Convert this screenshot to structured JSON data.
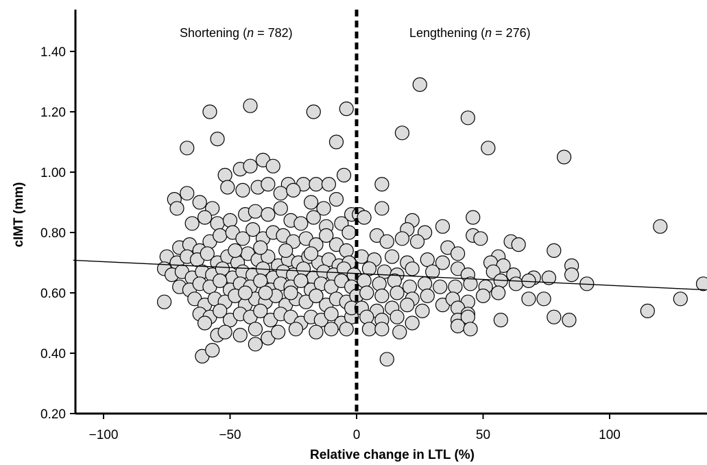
{
  "chart_data": {
    "type": "scatter",
    "title": "",
    "xlabel": "Relative change in LTL (%)",
    "ylabel": "cIMT (mm)",
    "xlim": [
      -112,
      138
    ],
    "ylim": [
      0.2,
      1.55
    ],
    "x_ticks": [
      -100,
      -50,
      0,
      50,
      100
    ],
    "x_tick_labels": [
      "−100",
      "−50",
      "0",
      "50",
      "100"
    ],
    "y_ticks": [
      0.2,
      0.4,
      0.6,
      0.8,
      1.0,
      1.2,
      1.4
    ],
    "y_tick_labels": [
      "0.20",
      "0.40",
      "0.60",
      "0.80",
      "1.00",
      "1.20",
      "1.40"
    ],
    "grid": false,
    "annotations": {
      "left_prefix": "Shortening (",
      "left_n": "n",
      "left_suffix": " = 782)",
      "right_prefix": "Lengthening (",
      "right_n": "n",
      "right_suffix": " = 276)"
    },
    "reference_line": {
      "x": 0,
      "style": "dashed"
    },
    "regression_line": {
      "x": [
        -112,
        138
      ],
      "y": [
        0.708,
        0.61
      ]
    },
    "marker_color": "#dcdcdc",
    "points": [
      [
        -58,
        1.2
      ],
      [
        -42,
        1.22
      ],
      [
        -17,
        1.2
      ],
      [
        -4,
        1.21
      ],
      [
        -67,
        1.08
      ],
      [
        -55,
        1.11
      ],
      [
        -8,
        1.1
      ],
      [
        -72,
        0.91
      ],
      [
        -67,
        0.93
      ],
      [
        -62,
        0.9
      ],
      [
        -57,
        0.88
      ],
      [
        -52,
        0.99
      ],
      [
        -46,
        1.01
      ],
      [
        -42,
        1.02
      ],
      [
        -37,
        1.04
      ],
      [
        -33,
        1.02
      ],
      [
        -27,
        0.96
      ],
      [
        -21,
        0.96
      ],
      [
        -16,
        0.96
      ],
      [
        -11,
        0.96
      ],
      [
        -5,
        0.99
      ],
      [
        -51,
        0.95
      ],
      [
        -45,
        0.94
      ],
      [
        -39,
        0.95
      ],
      [
        -35,
        0.96
      ],
      [
        -30,
        0.93
      ],
      [
        -25,
        0.94
      ],
      [
        -18,
        0.9
      ],
      [
        -13,
        0.88
      ],
      [
        -8,
        0.91
      ],
      [
        -2,
        0.86
      ],
      [
        1,
        0.86
      ],
      [
        -71,
        0.88
      ],
      [
        -65,
        0.83
      ],
      [
        -60,
        0.85
      ],
      [
        -55,
        0.83
      ],
      [
        -50,
        0.84
      ],
      [
        -44,
        0.86
      ],
      [
        -40,
        0.87
      ],
      [
        -35,
        0.86
      ],
      [
        -30,
        0.88
      ],
      [
        -26,
        0.84
      ],
      [
        -22,
        0.83
      ],
      [
        -17,
        0.85
      ],
      [
        -12,
        0.82
      ],
      [
        -6,
        0.83
      ],
      [
        -3,
        0.8
      ],
      [
        -70,
        0.75
      ],
      [
        -66,
        0.76
      ],
      [
        -62,
        0.74
      ],
      [
        -58,
        0.77
      ],
      [
        -54,
        0.79
      ],
      [
        -49,
        0.8
      ],
      [
        -45,
        0.78
      ],
      [
        -41,
        0.81
      ],
      [
        -37,
        0.78
      ],
      [
        -33,
        0.8
      ],
      [
        -29,
        0.79
      ],
      [
        -25,
        0.77
      ],
      [
        -20,
        0.78
      ],
      [
        -16,
        0.76
      ],
      [
        -12,
        0.79
      ],
      [
        -8,
        0.76
      ],
      [
        -4,
        0.74
      ],
      [
        -75,
        0.72
      ],
      [
        -71,
        0.7
      ],
      [
        -67,
        0.72
      ],
      [
        -63,
        0.71
      ],
      [
        -59,
        0.73
      ],
      [
        -55,
        0.7
      ],
      [
        -51,
        0.72
      ],
      [
        -47,
        0.7
      ],
      [
        -43,
        0.73
      ],
      [
        -39,
        0.71
      ],
      [
        -35,
        0.72
      ],
      [
        -31,
        0.69
      ],
      [
        -27,
        0.71
      ],
      [
        -23,
        0.7
      ],
      [
        -19,
        0.72
      ],
      [
        -15,
        0.7
      ],
      [
        -11,
        0.71
      ],
      [
        -7,
        0.69
      ],
      [
        -3,
        0.7
      ],
      [
        -76,
        0.68
      ],
      [
        -73,
        0.66
      ],
      [
        -69,
        0.67
      ],
      [
        -65,
        0.65
      ],
      [
        -61,
        0.67
      ],
      [
        -57,
        0.66
      ],
      [
        -53,
        0.68
      ],
      [
        -49,
        0.65
      ],
      [
        -45,
        0.67
      ],
      [
        -41,
        0.66
      ],
      [
        -37,
        0.68
      ],
      [
        -33,
        0.65
      ],
      [
        -29,
        0.67
      ],
      [
        -25,
        0.66
      ],
      [
        -21,
        0.68
      ],
      [
        -17,
        0.65
      ],
      [
        -13,
        0.67
      ],
      [
        -9,
        0.66
      ],
      [
        -5,
        0.68
      ],
      [
        -1,
        0.66
      ],
      [
        -70,
        0.62
      ],
      [
        -66,
        0.61
      ],
      [
        -62,
        0.63
      ],
      [
        -58,
        0.62
      ],
      [
        -54,
        0.64
      ],
      [
        -50,
        0.61
      ],
      [
        -46,
        0.63
      ],
      [
        -42,
        0.62
      ],
      [
        -38,
        0.64
      ],
      [
        -34,
        0.61
      ],
      [
        -30,
        0.63
      ],
      [
        -26,
        0.62
      ],
      [
        -22,
        0.64
      ],
      [
        -18,
        0.61
      ],
      [
        -14,
        0.63
      ],
      [
        -10,
        0.62
      ],
      [
        -6,
        0.64
      ],
      [
        -2,
        0.62
      ],
      [
        -76,
        0.57
      ],
      [
        -64,
        0.58
      ],
      [
        -60,
        0.56
      ],
      [
        -56,
        0.58
      ],
      [
        -52,
        0.57
      ],
      [
        -48,
        0.59
      ],
      [
        -44,
        0.56
      ],
      [
        -40,
        0.58
      ],
      [
        -36,
        0.57
      ],
      [
        -32,
        0.59
      ],
      [
        -28,
        0.56
      ],
      [
        -24,
        0.58
      ],
      [
        -20,
        0.57
      ],
      [
        -16,
        0.59
      ],
      [
        -12,
        0.56
      ],
      [
        -8,
        0.58
      ],
      [
        -4,
        0.57
      ],
      [
        0,
        0.59
      ],
      [
        -62,
        0.53
      ],
      [
        -58,
        0.52
      ],
      [
        -54,
        0.54
      ],
      [
        -50,
        0.51
      ],
      [
        -46,
        0.53
      ],
      [
        -42,
        0.52
      ],
      [
        -38,
        0.54
      ],
      [
        -34,
        0.51
      ],
      [
        -30,
        0.53
      ],
      [
        -26,
        0.52
      ],
      [
        -22,
        0.5
      ],
      [
        -18,
        0.52
      ],
      [
        -14,
        0.51
      ],
      [
        -10,
        0.53
      ],
      [
        -6,
        0.5
      ],
      [
        -2,
        0.52
      ],
      [
        -60,
        0.5
      ],
      [
        -55,
        0.46
      ],
      [
        -52,
        0.47
      ],
      [
        -46,
        0.46
      ],
      [
        -40,
        0.48
      ],
      [
        -35,
        0.45
      ],
      [
        -31,
        0.47
      ],
      [
        -24,
        0.48
      ],
      [
        -16,
        0.47
      ],
      [
        -10,
        0.48
      ],
      [
        -4,
        0.48
      ],
      [
        -61,
        0.39
      ],
      [
        -57,
        0.41
      ],
      [
        -40,
        0.43
      ],
      [
        -48,
        0.74
      ],
      [
        -38,
        0.75
      ],
      [
        -28,
        0.74
      ],
      [
        -18,
        0.73
      ],
      [
        -44,
        0.6
      ],
      [
        -36,
        0.6
      ],
      [
        -26,
        0.6
      ],
      [
        -16,
        0.59
      ],
      [
        -2,
        0.55
      ],
      [
        25,
        1.29
      ],
      [
        44,
        1.18
      ],
      [
        18,
        1.13
      ],
      [
        52,
        1.08
      ],
      [
        82,
        1.05
      ],
      [
        10,
        0.96
      ],
      [
        10,
        0.88
      ],
      [
        3,
        0.85
      ],
      [
        22,
        0.84
      ],
      [
        34,
        0.82
      ],
      [
        46,
        0.85
      ],
      [
        120,
        0.82
      ],
      [
        20,
        0.81
      ],
      [
        27,
        0.8
      ],
      [
        8,
        0.79
      ],
      [
        12,
        0.77
      ],
      [
        18,
        0.78
      ],
      [
        24,
        0.77
      ],
      [
        46,
        0.79
      ],
      [
        49,
        0.78
      ],
      [
        61,
        0.77
      ],
      [
        64,
        0.76
      ],
      [
        36,
        0.75
      ],
      [
        40,
        0.73
      ],
      [
        56,
        0.72
      ],
      [
        78,
        0.74
      ],
      [
        2,
        0.72
      ],
      [
        7,
        0.71
      ],
      [
        14,
        0.72
      ],
      [
        20,
        0.7
      ],
      [
        28,
        0.71
      ],
      [
        34,
        0.7
      ],
      [
        53,
        0.7
      ],
      [
        58,
        0.69
      ],
      [
        5,
        0.68
      ],
      [
        11,
        0.67
      ],
      [
        16,
        0.66
      ],
      [
        22,
        0.68
      ],
      [
        30,
        0.67
      ],
      [
        40,
        0.68
      ],
      [
        44,
        0.66
      ],
      [
        54,
        0.67
      ],
      [
        62,
        0.66
      ],
      [
        70,
        0.65
      ],
      [
        76,
        0.65
      ],
      [
        85,
        0.69
      ],
      [
        85,
        0.66
      ],
      [
        91,
        0.63
      ],
      [
        137,
        0.63
      ],
      [
        3,
        0.64
      ],
      [
        9,
        0.63
      ],
      [
        15,
        0.64
      ],
      [
        21,
        0.62
      ],
      [
        27,
        0.63
      ],
      [
        33,
        0.62
      ],
      [
        39,
        0.62
      ],
      [
        45,
        0.63
      ],
      [
        51,
        0.62
      ],
      [
        57,
        0.64
      ],
      [
        63,
        0.63
      ],
      [
        68,
        0.64
      ],
      [
        4,
        0.6
      ],
      [
        10,
        0.59
      ],
      [
        16,
        0.6
      ],
      [
        22,
        0.58
      ],
      [
        28,
        0.59
      ],
      [
        34,
        0.56
      ],
      [
        38,
        0.58
      ],
      [
        44,
        0.57
      ],
      [
        50,
        0.59
      ],
      [
        56,
        0.6
      ],
      [
        68,
        0.58
      ],
      [
        74,
        0.58
      ],
      [
        2,
        0.55
      ],
      [
        8,
        0.54
      ],
      [
        14,
        0.55
      ],
      [
        20,
        0.56
      ],
      [
        26,
        0.54
      ],
      [
        40,
        0.55
      ],
      [
        44,
        0.53
      ],
      [
        115,
        0.54
      ],
      [
        128,
        0.58
      ],
      [
        4,
        0.52
      ],
      [
        10,
        0.51
      ],
      [
        16,
        0.52
      ],
      [
        22,
        0.5
      ],
      [
        40,
        0.51
      ],
      [
        44,
        0.52
      ],
      [
        57,
        0.51
      ],
      [
        78,
        0.52
      ],
      [
        84,
        0.51
      ],
      [
        5,
        0.48
      ],
      [
        10,
        0.48
      ],
      [
        17,
        0.47
      ],
      [
        40,
        0.49
      ],
      [
        45,
        0.48
      ],
      [
        12,
        0.38
      ]
    ]
  }
}
